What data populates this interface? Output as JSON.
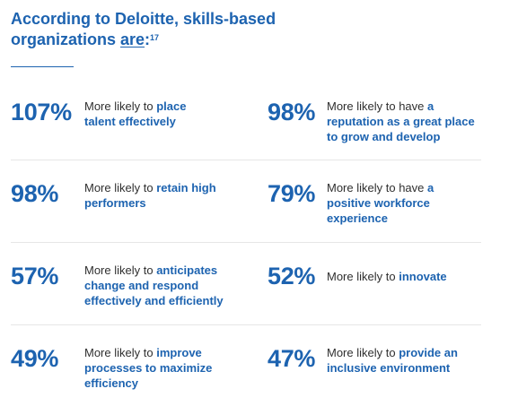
{
  "header": {
    "title_line1": "According to Deloitte, skills-based",
    "title_line2_pre": "organizations ",
    "title_line2_underlined": "are",
    "title_line2_post": ":",
    "footnote": "17"
  },
  "stats": [
    {
      "value": "107%",
      "lead": "More likely to ",
      "highlight": "place talent effectively"
    },
    {
      "value": "98%",
      "lead": "More likely to have ",
      "highlight": "a reputation as a great place to grow and develop"
    },
    {
      "value": "98%",
      "lead": "More likely to ",
      "highlight": "retain high performers"
    },
    {
      "value": "79%",
      "lead": "More likely to have ",
      "highlight": "a positive workforce experience"
    },
    {
      "value": "57%",
      "lead": "More likely to ",
      "highlight": "anticipates change and respond effectively and efficiently"
    },
    {
      "value": "52%",
      "lead": "More likely to ",
      "highlight": "innovate"
    },
    {
      "value": "49%",
      "lead": "More likely to ",
      "highlight": "improve processes to maximize efficiency"
    },
    {
      "value": "47%",
      "lead": "More likely to ",
      "highlight": "provide an inclusive environment"
    }
  ],
  "colors": {
    "accent": "#1d63b0",
    "text": "#2f2f2f",
    "divider": "#e6e6e6"
  }
}
